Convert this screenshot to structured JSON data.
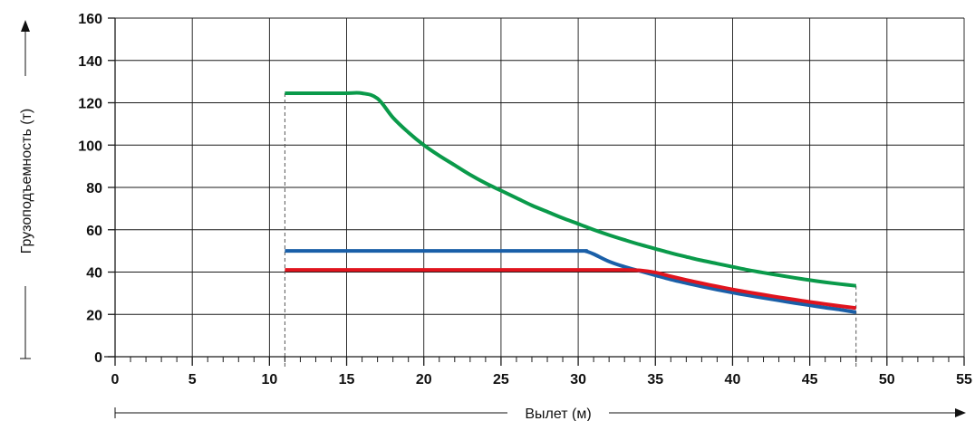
{
  "chart_data": {
    "type": "line",
    "title": "",
    "xlabel": "Вылет (м)",
    "ylabel": "Грузоподъемность (т)",
    "xlim": [
      0,
      55
    ],
    "ylim": [
      0,
      160
    ],
    "x_ticks": [
      0,
      5,
      10,
      15,
      20,
      25,
      30,
      35,
      40,
      45,
      50,
      55
    ],
    "y_ticks": [
      0,
      20,
      40,
      60,
      80,
      100,
      120,
      140,
      160
    ],
    "x_minor_step": 1,
    "grid": true,
    "legend": "none",
    "range_markers": [
      11,
      48
    ],
    "series": [
      {
        "color": "#0a9a4a",
        "points": [
          [
            11,
            124.5
          ],
          [
            12,
            124.5
          ],
          [
            13,
            124.5
          ],
          [
            14,
            124.5
          ],
          [
            15,
            124.5
          ],
          [
            16,
            124.5
          ],
          [
            17,
            122
          ],
          [
            18,
            113
          ],
          [
            19,
            106
          ],
          [
            20,
            100
          ],
          [
            21,
            95
          ],
          [
            22,
            90.5
          ],
          [
            23,
            86
          ],
          [
            24,
            82
          ],
          [
            25,
            78.5
          ],
          [
            26,
            75
          ],
          [
            27,
            71.5
          ],
          [
            28,
            68.5
          ],
          [
            29,
            65.5
          ],
          [
            30,
            62.8
          ],
          [
            31,
            60
          ],
          [
            32,
            57.5
          ],
          [
            33,
            55.2
          ],
          [
            34,
            53
          ],
          [
            35,
            51
          ],
          [
            36,
            49
          ],
          [
            37,
            47.2
          ],
          [
            38,
            45.5
          ],
          [
            39,
            44
          ],
          [
            40,
            42.5
          ],
          [
            41,
            41
          ],
          [
            42,
            39.7
          ],
          [
            43,
            38.5
          ],
          [
            44,
            37.3
          ],
          [
            45,
            36.2
          ],
          [
            46,
            35.2
          ],
          [
            47,
            34.3
          ],
          [
            48,
            33.5
          ]
        ]
      },
      {
        "color": "#1a5fa8",
        "points": [
          [
            11,
            50
          ],
          [
            15,
            50
          ],
          [
            20,
            50
          ],
          [
            25,
            50
          ],
          [
            30,
            50
          ],
          [
            30.5,
            49.8
          ],
          [
            31,
            48.5
          ],
          [
            32,
            45
          ],
          [
            33,
            42.5
          ],
          [
            34,
            40.5
          ],
          [
            35,
            38.5
          ],
          [
            36,
            36.5
          ],
          [
            37,
            34.8
          ],
          [
            38,
            33.2
          ],
          [
            39,
            31.7
          ],
          [
            40,
            30.3
          ],
          [
            41,
            29
          ],
          [
            42,
            27.8
          ],
          [
            43,
            26.6
          ],
          [
            44,
            25.4
          ],
          [
            45,
            24.3
          ],
          [
            46,
            23.2
          ],
          [
            47,
            22.2
          ],
          [
            48,
            21
          ]
        ]
      },
      {
        "color": "#e0141e",
        "points": [
          [
            11,
            41
          ],
          [
            15,
            41
          ],
          [
            20,
            41
          ],
          [
            25,
            41
          ],
          [
            30,
            41
          ],
          [
            33,
            41
          ],
          [
            34,
            40.8
          ],
          [
            35,
            39.8
          ],
          [
            36,
            38
          ],
          [
            37,
            36.3
          ],
          [
            38,
            34.7
          ],
          [
            39,
            33.2
          ],
          [
            40,
            31.8
          ],
          [
            41,
            30.5
          ],
          [
            42,
            29.3
          ],
          [
            43,
            28.1
          ],
          [
            44,
            27
          ],
          [
            45,
            25.9
          ],
          [
            46,
            24.9
          ],
          [
            47,
            23.9
          ],
          [
            48,
            23
          ]
        ]
      }
    ]
  }
}
